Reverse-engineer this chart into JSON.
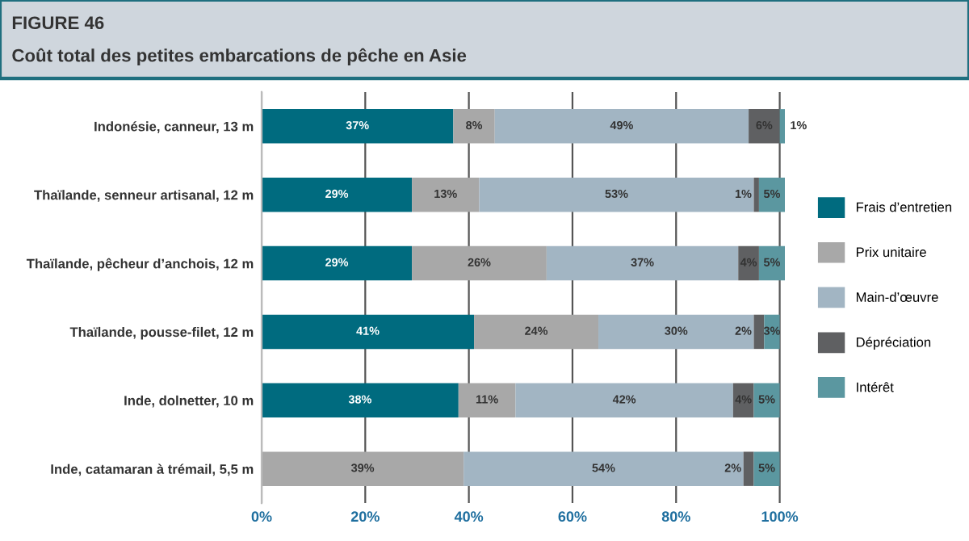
{
  "chart_data": {
    "type": "bar",
    "orientation": "horizontal",
    "stacked": true,
    "title": "FIGURE 46",
    "subtitle": "Coût total des petites embarcations de pêche en Asie",
    "categories": [
      "Indonésie, canneur, 13 m",
      "Thaïlande, senneur artisanal, 12 m",
      "Thaïlande, pêcheur d’anchois, 12 m",
      "Thaïlande, pousse-filet, 12 m",
      "Inde, dolnetter, 10 m",
      "Inde, catamaran à trémail, 5,5 m"
    ],
    "series": [
      {
        "name": "Frais d’entretien",
        "color": "#006b7f",
        "values": [
          37,
          29,
          29,
          41,
          38,
          null
        ],
        "value_labels": [
          "37%",
          "29%",
          "29%",
          "41%",
          "38%",
          null
        ]
      },
      {
        "name": "Prix unitaire",
        "color": "#a8a8a8",
        "values": [
          8,
          13,
          26,
          24,
          11,
          39
        ],
        "value_labels": [
          "8%",
          "13%",
          "26%",
          "24%",
          "11%",
          "39%"
        ]
      },
      {
        "name": "Main-d’œuvre",
        "color": "#a2b5c3",
        "values": [
          49,
          53,
          37,
          30,
          42,
          54
        ],
        "value_labels": [
          "49%",
          "53%",
          "37%",
          "30%",
          "42%",
          "54%"
        ]
      },
      {
        "name": "Dépréciation",
        "color": "#5f6062",
        "values": [
          6,
          1,
          4,
          2,
          4,
          2
        ],
        "value_labels": [
          "6%",
          "1%",
          "4%",
          "2%",
          "4%",
          "2%"
        ]
      },
      {
        "name": "Intérêt",
        "color": "#5b97a0",
        "values": [
          1,
          5,
          5,
          3,
          5,
          5
        ],
        "value_labels": [
          "1%",
          "5%",
          "5%",
          "3%",
          "5%",
          "5%"
        ]
      }
    ],
    "xlim": [
      0,
      101
    ],
    "xticks": [
      {
        "value": 0,
        "label": "0%"
      },
      {
        "value": 20,
        "label": "20%"
      },
      {
        "value": 40,
        "label": "40%"
      },
      {
        "value": 60,
        "label": "60%"
      },
      {
        "value": 80,
        "label": "80%"
      },
      {
        "value": 100,
        "label": "100%"
      }
    ],
    "grid": "x",
    "legend": "right"
  }
}
